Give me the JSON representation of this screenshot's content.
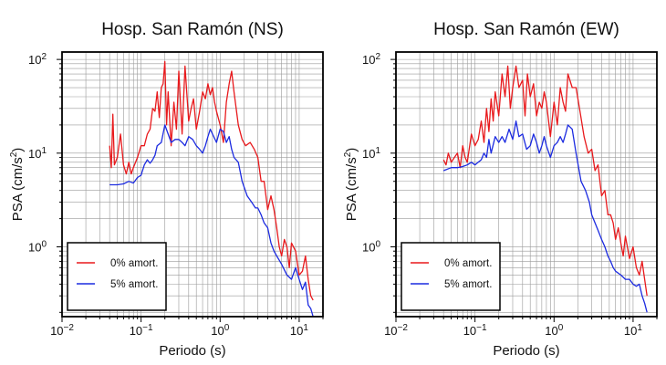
{
  "chart_data": [
    {
      "type": "line",
      "title": "Hosp. San Ramón (NS)",
      "xlabel": "Periodo (s)",
      "ylabel_main": "PSA (cm/s",
      "ylabel_sup": "2",
      "ylabel_tail": ")",
      "xscale": "log",
      "yscale": "log",
      "xlim": [
        0.01,
        20
      ],
      "ylim": [
        0.18,
        120
      ],
      "grid": true,
      "legend_position": "lower-left",
      "x_ticks": [
        {
          "base": "10",
          "exp": "−2"
        },
        {
          "base": "10",
          "exp": "−1"
        },
        {
          "base": "10",
          "exp": "0"
        },
        {
          "base": "10",
          "exp": "1"
        }
      ],
      "y_ticks": [
        {
          "base": "10",
          "exp": "0"
        },
        {
          "base": "10",
          "exp": "1"
        },
        {
          "base": "10",
          "exp": "2"
        }
      ],
      "series": [
        {
          "name": "0% amort.",
          "color": "#e8191c",
          "x": [
            0.04,
            0.042,
            0.044,
            0.046,
            0.05,
            0.055,
            0.06,
            0.065,
            0.07,
            0.075,
            0.08,
            0.09,
            0.1,
            0.11,
            0.12,
            0.13,
            0.14,
            0.15,
            0.16,
            0.17,
            0.18,
            0.19,
            0.2,
            0.21,
            0.22,
            0.24,
            0.26,
            0.28,
            0.3,
            0.33,
            0.36,
            0.4,
            0.43,
            0.46,
            0.5,
            0.55,
            0.6,
            0.65,
            0.7,
            0.75,
            0.8,
            0.85,
            0.9,
            1.0,
            1.1,
            1.2,
            1.3,
            1.4,
            1.5,
            1.7,
            1.9,
            2.1,
            2.4,
            2.7,
            3.0,
            3.3,
            3.6,
            4.0,
            4.4,
            4.8,
            5.2,
            5.6,
            6.0,
            6.5,
            7.0,
            7.5,
            8.0,
            9.0,
            10.0,
            11.0,
            12.0,
            13.0,
            14.0,
            15.0
          ],
          "y": [
            12,
            7,
            26,
            7.5,
            9,
            16,
            7.5,
            6,
            8,
            6,
            7,
            9,
            12,
            12,
            16,
            18,
            30,
            28,
            45,
            24,
            50,
            55,
            95,
            20,
            45,
            12,
            35,
            18,
            75,
            16,
            85,
            22,
            30,
            38,
            18,
            28,
            45,
            38,
            55,
            42,
            50,
            35,
            28,
            20,
            13,
            35,
            55,
            75,
            45,
            20,
            14,
            12,
            13,
            11,
            9,
            5,
            5,
            2.5,
            3.5,
            2.5,
            1.6,
            1.0,
            0.8,
            1.2,
            1.0,
            0.6,
            1.1,
            0.9,
            0.5,
            0.55,
            0.8,
            0.45,
            0.3,
            0.27
          ]
        },
        {
          "name": "5% amort.",
          "color": "#1c2be0",
          "x": [
            0.04,
            0.05,
            0.06,
            0.07,
            0.08,
            0.09,
            0.1,
            0.11,
            0.12,
            0.13,
            0.14,
            0.15,
            0.16,
            0.18,
            0.2,
            0.22,
            0.24,
            0.27,
            0.3,
            0.33,
            0.36,
            0.4,
            0.45,
            0.5,
            0.55,
            0.6,
            0.65,
            0.7,
            0.75,
            0.8,
            0.9,
            1.0,
            1.1,
            1.2,
            1.3,
            1.4,
            1.5,
            1.7,
            1.9,
            2.2,
            2.5,
            2.8,
            3.0,
            3.3,
            3.6,
            4.0,
            4.4,
            4.8,
            5.2,
            5.6,
            6.0,
            7.0,
            8.0,
            9.0,
            10.0,
            11.0,
            12.0,
            13.0,
            14.0,
            15.0
          ],
          "y": [
            4.6,
            4.6,
            4.7,
            5.0,
            4.8,
            5.5,
            5.8,
            7.5,
            8.5,
            7.8,
            8.5,
            9.5,
            12,
            13,
            20,
            16,
            13,
            14,
            14,
            13,
            12,
            15,
            14,
            12,
            11,
            10,
            12,
            15,
            18,
            16,
            13,
            18,
            17,
            13,
            15,
            11,
            9,
            8,
            5,
            3.5,
            3,
            2.6,
            2.6,
            2.2,
            1.8,
            1.6,
            1.1,
            0.9,
            0.8,
            0.72,
            0.65,
            0.5,
            0.45,
            0.6,
            0.45,
            0.35,
            0.42,
            0.24,
            0.22,
            0.18
          ]
        }
      ]
    },
    {
      "type": "line",
      "title": "Hosp. San Ramón (EW)",
      "xlabel": "Periodo (s)",
      "ylabel_main": "PSA (cm/s",
      "ylabel_sup": "2",
      "ylabel_tail": ")",
      "xscale": "log",
      "yscale": "log",
      "xlim": [
        0.01,
        20
      ],
      "ylim": [
        0.18,
        120
      ],
      "grid": true,
      "legend_position": "lower-left",
      "x_ticks": [
        {
          "base": "10",
          "exp": "−2"
        },
        {
          "base": "10",
          "exp": "−1"
        },
        {
          "base": "10",
          "exp": "0"
        },
        {
          "base": "10",
          "exp": "1"
        }
      ],
      "y_ticks": [
        {
          "base": "10",
          "exp": "0"
        },
        {
          "base": "10",
          "exp": "1"
        },
        {
          "base": "10",
          "exp": "2"
        }
      ],
      "series": [
        {
          "name": "0% amort.",
          "color": "#e8191c",
          "x": [
            0.04,
            0.043,
            0.046,
            0.05,
            0.055,
            0.06,
            0.065,
            0.07,
            0.075,
            0.08,
            0.09,
            0.1,
            0.11,
            0.12,
            0.13,
            0.14,
            0.15,
            0.16,
            0.17,
            0.18,
            0.2,
            0.22,
            0.24,
            0.26,
            0.28,
            0.3,
            0.33,
            0.36,
            0.4,
            0.43,
            0.46,
            0.5,
            0.55,
            0.6,
            0.65,
            0.7,
            0.75,
            0.8,
            0.9,
            1.0,
            1.1,
            1.2,
            1.3,
            1.4,
            1.5,
            1.7,
            1.9,
            2.1,
            2.4,
            2.7,
            3.0,
            3.3,
            3.6,
            4.0,
            4.4,
            4.8,
            5.2,
            5.6,
            6.0,
            6.5,
            7.0,
            7.5,
            8.0,
            9.0,
            10.0,
            11.0,
            12.0,
            13.0,
            14.0,
            15.0
          ],
          "y": [
            8.5,
            7.5,
            10,
            8,
            9,
            10,
            7,
            12,
            9,
            8,
            16,
            12,
            14,
            22,
            13,
            30,
            17,
            38,
            22,
            45,
            25,
            70,
            40,
            85,
            30,
            50,
            85,
            50,
            60,
            25,
            70,
            40,
            55,
            25,
            35,
            30,
            45,
            35,
            15,
            35,
            20,
            50,
            35,
            28,
            70,
            50,
            50,
            30,
            15,
            10,
            11,
            6.5,
            7.5,
            3.5,
            4,
            2.2,
            2.2,
            1.8,
            1.2,
            1.6,
            1.1,
            0.8,
            1.3,
            0.75,
            1.0,
            0.6,
            0.5,
            0.7,
            0.45,
            0.3
          ]
        },
        {
          "name": "5% amort.",
          "color": "#1c2be0",
          "x": [
            0.04,
            0.05,
            0.06,
            0.07,
            0.08,
            0.09,
            0.1,
            0.11,
            0.12,
            0.13,
            0.14,
            0.15,
            0.16,
            0.18,
            0.2,
            0.22,
            0.24,
            0.27,
            0.3,
            0.33,
            0.36,
            0.4,
            0.45,
            0.5,
            0.55,
            0.6,
            0.65,
            0.7,
            0.75,
            0.8,
            0.9,
            1.0,
            1.1,
            1.2,
            1.3,
            1.4,
            1.5,
            1.7,
            1.9,
            2.2,
            2.5,
            2.8,
            3.0,
            3.3,
            3.6,
            4.0,
            4.4,
            4.8,
            5.2,
            5.6,
            6.0,
            7.0,
            8.0,
            9.0,
            10.0,
            11.0,
            12.0,
            13.0,
            14.0,
            15.0
          ],
          "y": [
            6.5,
            7.0,
            7.0,
            7.2,
            7.5,
            8.0,
            7.5,
            8.0,
            8.5,
            10,
            9,
            14,
            10,
            15,
            13,
            15,
            13,
            18,
            14,
            22,
            15,
            16,
            11,
            12,
            16,
            13,
            10,
            12,
            15,
            12,
            9,
            12,
            13,
            15,
            13,
            16,
            20,
            18,
            10,
            5,
            4,
            3,
            2.2,
            1.8,
            1.5,
            1.2,
            1.0,
            0.8,
            0.7,
            0.6,
            0.55,
            0.5,
            0.45,
            0.45,
            0.4,
            0.38,
            0.4,
            0.3,
            0.25,
            0.2
          ]
        }
      ]
    }
  ]
}
